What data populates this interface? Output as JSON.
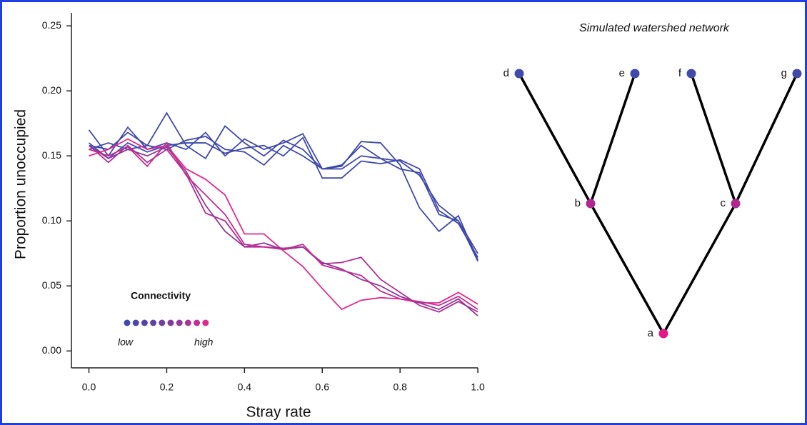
{
  "chart_data": {
    "type": "line",
    "x_label": "Stray rate",
    "y_label": "Proportion unoccupied",
    "x": [
      0,
      0.05,
      0.1,
      0.15,
      0.2,
      0.25,
      0.3,
      0.35,
      0.4,
      0.45,
      0.5,
      0.55,
      0.6,
      0.65,
      0.7,
      0.75,
      0.8,
      0.85,
      0.9,
      0.95,
      1.0
    ],
    "series": [
      {
        "color": "#3f4aab",
        "values": [
          0.17,
          0.15,
          0.172,
          0.155,
          0.16,
          0.155,
          0.168,
          0.15,
          0.163,
          0.155,
          0.16,
          0.167,
          0.14,
          0.142,
          0.161,
          0.16,
          0.143,
          0.11,
          0.092,
          0.104,
          0.07
        ]
      },
      {
        "color": "#3f4aab",
        "values": [
          0.158,
          0.155,
          0.168,
          0.158,
          0.183,
          0.158,
          0.148,
          0.173,
          0.16,
          0.15,
          0.162,
          0.155,
          0.14,
          0.14,
          0.15,
          0.148,
          0.146,
          0.135,
          0.112,
          0.1,
          0.075
        ]
      },
      {
        "color": "#3f4aab",
        "values": [
          0.16,
          0.148,
          0.16,
          0.153,
          0.158,
          0.16,
          0.16,
          0.152,
          0.156,
          0.158,
          0.15,
          0.164,
          0.133,
          0.133,
          0.146,
          0.144,
          0.147,
          0.14,
          0.108,
          0.098,
          0.072
        ]
      },
      {
        "color": "#3f4aab",
        "values": [
          0.155,
          0.16,
          0.155,
          0.158,
          0.155,
          0.162,
          0.165,
          0.155,
          0.153,
          0.143,
          0.158,
          0.15,
          0.14,
          0.143,
          0.158,
          0.148,
          0.14,
          0.137,
          0.105,
          0.1,
          0.069
        ]
      },
      {
        "color": "#e2288e",
        "values": [
          0.15,
          0.155,
          0.163,
          0.155,
          0.158,
          0.14,
          0.132,
          0.12,
          0.09,
          0.09,
          0.077,
          0.065,
          0.048,
          0.032,
          0.039,
          0.041,
          0.04,
          0.037,
          0.037,
          0.045,
          0.036
        ]
      },
      {
        "color": "#b12f93",
        "values": [
          0.158,
          0.145,
          0.158,
          0.145,
          0.155,
          0.136,
          0.106,
          0.1,
          0.08,
          0.08,
          0.079,
          0.08,
          0.067,
          0.068,
          0.072,
          0.055,
          0.045,
          0.035,
          0.03,
          0.038,
          0.03
        ]
      },
      {
        "color": "#8f3a98",
        "values": [
          0.158,
          0.148,
          0.155,
          0.15,
          0.157,
          0.138,
          0.112,
          0.092,
          0.08,
          0.083,
          0.078,
          0.08,
          0.068,
          0.063,
          0.055,
          0.05,
          0.042,
          0.037,
          0.032,
          0.04,
          0.027
        ]
      },
      {
        "color": "#c42d91",
        "values": [
          0.155,
          0.15,
          0.157,
          0.142,
          0.16,
          0.135,
          0.12,
          0.105,
          0.082,
          0.08,
          0.078,
          0.082,
          0.066,
          0.062,
          0.058,
          0.046,
          0.04,
          0.038,
          0.035,
          0.042,
          0.032
        ]
      }
    ],
    "xlim": [
      -0.045,
      1.02
    ],
    "ylim": [
      -0.013,
      0.26
    ],
    "xticks": [
      {
        "value": 0,
        "label": "0.0"
      },
      {
        "value": 0.2,
        "label": "0.2"
      },
      {
        "value": 0.4,
        "label": "0.4"
      },
      {
        "value": 0.6,
        "label": "0.6"
      },
      {
        "value": 0.8,
        "label": "0.8"
      },
      {
        "value": 1.0,
        "label": "1.0"
      }
    ],
    "yticks": [
      {
        "value": 0,
        "label": "0.00"
      },
      {
        "value": 0.05,
        "label": "0.05"
      },
      {
        "value": 0.1,
        "label": "0.10"
      },
      {
        "value": 0.15,
        "label": "0.15"
      },
      {
        "value": 0.2,
        "label": "0.20"
      },
      {
        "value": 0.25,
        "label": "0.25"
      }
    ],
    "legend": {
      "title": "Connectivity",
      "low": "low",
      "high": "high",
      "colors": [
        "#3f4aab",
        "#4a46a8",
        "#5544a6",
        "#6341a3",
        "#72409f",
        "#823c9b",
        "#923a98",
        "#a73594",
        "#c02f91",
        "#e0288d"
      ]
    }
  },
  "diagram": {
    "title": "Simulated watershed network",
    "nodes": [
      {
        "label": "d",
        "color": "#3f4aab"
      },
      {
        "label": "e",
        "color": "#3f4aab"
      },
      {
        "label": "f",
        "color": "#3f4aab"
      },
      {
        "label": "g",
        "color": "#3f4aab"
      },
      {
        "label": "b",
        "color": "#b0288f"
      },
      {
        "label": "c",
        "color": "#b0288f"
      },
      {
        "label": "a",
        "color": "#e4178a"
      }
    ]
  }
}
